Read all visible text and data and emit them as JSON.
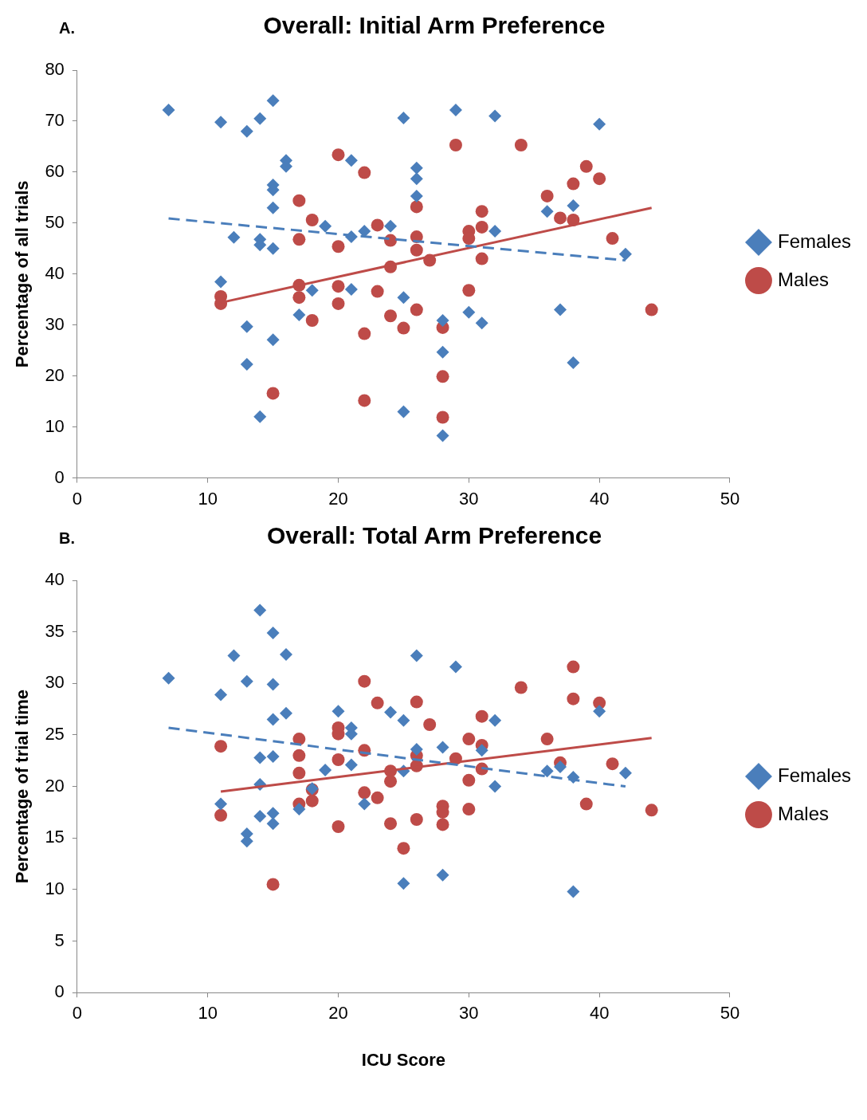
{
  "chart_data": [
    {
      "type": "scatter",
      "title": "Overall: Initial Arm Preference",
      "ylabel": "Percentage of all trials",
      "annotations": [
        "A."
      ],
      "xlim": [
        0,
        50
      ],
      "xticks": [
        0,
        10,
        20,
        30,
        40,
        50
      ],
      "ylim": [
        0,
        80
      ],
      "yticks": [
        0,
        10,
        20,
        30,
        40,
        50,
        60,
        70,
        80
      ],
      "grid": false,
      "legend": "right",
      "series": [
        {
          "name": "Females",
          "color": "#4a7ebb",
          "marker": "diamond",
          "x": [
            7,
            11,
            13,
            14,
            15,
            16,
            16,
            15,
            15,
            15,
            12,
            14,
            14,
            15,
            11,
            19,
            21,
            21,
            22,
            24,
            21,
            18,
            17,
            13,
            15,
            13,
            14,
            25,
            26,
            26,
            26,
            25,
            25,
            28,
            28,
            28,
            29,
            32,
            32,
            30,
            31,
            36,
            38,
            37,
            38,
            40,
            42
          ],
          "values": [
            72.2,
            69.8,
            68,
            70.5,
            74,
            62.3,
            61.1,
            57.5,
            56.5,
            53,
            47.2,
            46.8,
            45.7,
            45,
            38.5,
            49.4,
            62.3,
            47.3,
            48.4,
            49.4,
            37,
            36.8,
            32,
            29.7,
            27.1,
            22.3,
            12,
            70.6,
            60.8,
            58.7,
            55.3,
            35.4,
            13,
            30.9,
            24.7,
            8.3,
            72.2,
            71,
            48.4,
            32.5,
            30.4,
            52.3,
            53.4,
            33,
            22.6,
            69.4,
            43.9
          ]
        },
        {
          "name": "Males",
          "color": "#be4b48",
          "marker": "circle",
          "x": [
            20,
            22,
            17,
            18,
            23,
            17,
            20,
            24,
            26,
            26,
            26,
            24,
            27,
            11,
            11,
            17,
            17,
            20,
            20,
            23,
            18,
            24,
            25,
            26,
            22,
            15,
            22,
            29,
            34,
            39,
            40,
            38,
            36,
            37,
            38,
            31,
            31,
            30,
            30,
            31,
            41,
            30,
            44,
            28,
            28,
            28
          ],
          "values": [
            63.4,
            59.9,
            54.4,
            50.6,
            49.6,
            46.8,
            45.4,
            46.6,
            53.2,
            47.3,
            44.7,
            41.4,
            42.7,
            35.6,
            34.2,
            37.8,
            35.4,
            37.6,
            34.2,
            36.6,
            30.9,
            31.8,
            29.4,
            33,
            28.3,
            16.6,
            15.2,
            65.3,
            65.3,
            61.1,
            58.7,
            57.7,
            55.3,
            51,
            50.6,
            52.3,
            49.2,
            48.4,
            47,
            43,
            47,
            36.8,
            33,
            29.5,
            19.9,
            11.9
          ]
        },
        {
          "type": "line",
          "color": "#4a7ebb",
          "line_style": "dashed",
          "marker": "none",
          "x": [
            7,
            42
          ],
          "values": [
            50.9,
            42.7
          ]
        },
        {
          "type": "line",
          "color": "#be4b48",
          "line_style": "solid",
          "marker": "none",
          "x": [
            11,
            44
          ],
          "values": [
            34.4,
            53
          ]
        }
      ]
    },
    {
      "type": "scatter",
      "title": "Overall: Total Arm Preference",
      "xlabel": "ICU Score",
      "ylabel": "Percentage of trial time",
      "annotations": [
        "B."
      ],
      "xlim": [
        0,
        50
      ],
      "xticks": [
        0,
        10,
        20,
        30,
        40,
        50
      ],
      "ylim": [
        0,
        40
      ],
      "yticks": [
        0,
        5,
        10,
        15,
        20,
        25,
        30,
        35,
        40
      ],
      "grid": false,
      "legend": "right",
      "series": [
        {
          "name": "Females",
          "color": "#4a7ebb",
          "marker": "diamond",
          "x": [
            7,
            12,
            14,
            15,
            16,
            13,
            15,
            11,
            16,
            15,
            20,
            21,
            21,
            24,
            25,
            26,
            14,
            15,
            19,
            21,
            25,
            26,
            14,
            18,
            11,
            17,
            15,
            14,
            15,
            22,
            13,
            13,
            25,
            29,
            32,
            28,
            31,
            32,
            36,
            38,
            37,
            40,
            42,
            28,
            38
          ],
          "values": [
            30.5,
            32.7,
            37.1,
            34.9,
            32.8,
            30.2,
            29.9,
            28.9,
            27.1,
            26.5,
            27.3,
            25.7,
            25.1,
            27.2,
            26.4,
            32.7,
            22.8,
            22.9,
            21.6,
            22.1,
            21.5,
            23.6,
            20.2,
            19.8,
            18.3,
            17.8,
            17.4,
            17.1,
            16.4,
            18.3,
            15.4,
            14.7,
            10.6,
            31.6,
            26.4,
            23.8,
            23.5,
            20,
            21.5,
            20.9,
            21.9,
            27.3,
            21.3,
            11.4,
            9.8
          ]
        },
        {
          "name": "Males",
          "color": "#be4b48",
          "marker": "circle",
          "x": [
            22,
            23,
            26,
            27,
            11,
            17,
            20,
            20,
            22,
            17,
            20,
            17,
            26,
            26,
            24,
            24,
            18,
            18,
            17,
            22,
            23,
            11,
            20,
            24,
            26,
            25,
            15,
            38,
            34,
            38,
            40,
            31,
            30,
            31,
            36,
            29,
            31,
            37,
            41,
            30,
            39,
            44,
            28,
            28,
            28,
            30
          ],
          "values": [
            30.2,
            28.1,
            28.2,
            26,
            23.9,
            24.6,
            25.7,
            25.1,
            23.5,
            23,
            22.6,
            21.3,
            23,
            22,
            21.5,
            20.5,
            19.7,
            18.6,
            18.3,
            19.4,
            18.9,
            17.2,
            16.1,
            16.4,
            16.8,
            14,
            10.5,
            31.6,
            29.6,
            28.5,
            28.1,
            26.8,
            24.6,
            24,
            24.6,
            22.7,
            21.7,
            22.3,
            22.2,
            20.6,
            18.3,
            17.7,
            18.1,
            17.5,
            16.3,
            17.8
          ]
        },
        {
          "type": "line",
          "color": "#4a7ebb",
          "line_style": "dashed",
          "marker": "none",
          "x": [
            7,
            42
          ],
          "values": [
            25.7,
            20
          ]
        },
        {
          "type": "line",
          "color": "#be4b48",
          "line_style": "solid",
          "marker": "none",
          "x": [
            11,
            44
          ],
          "values": [
            19.5,
            24.7
          ]
        }
      ]
    }
  ]
}
